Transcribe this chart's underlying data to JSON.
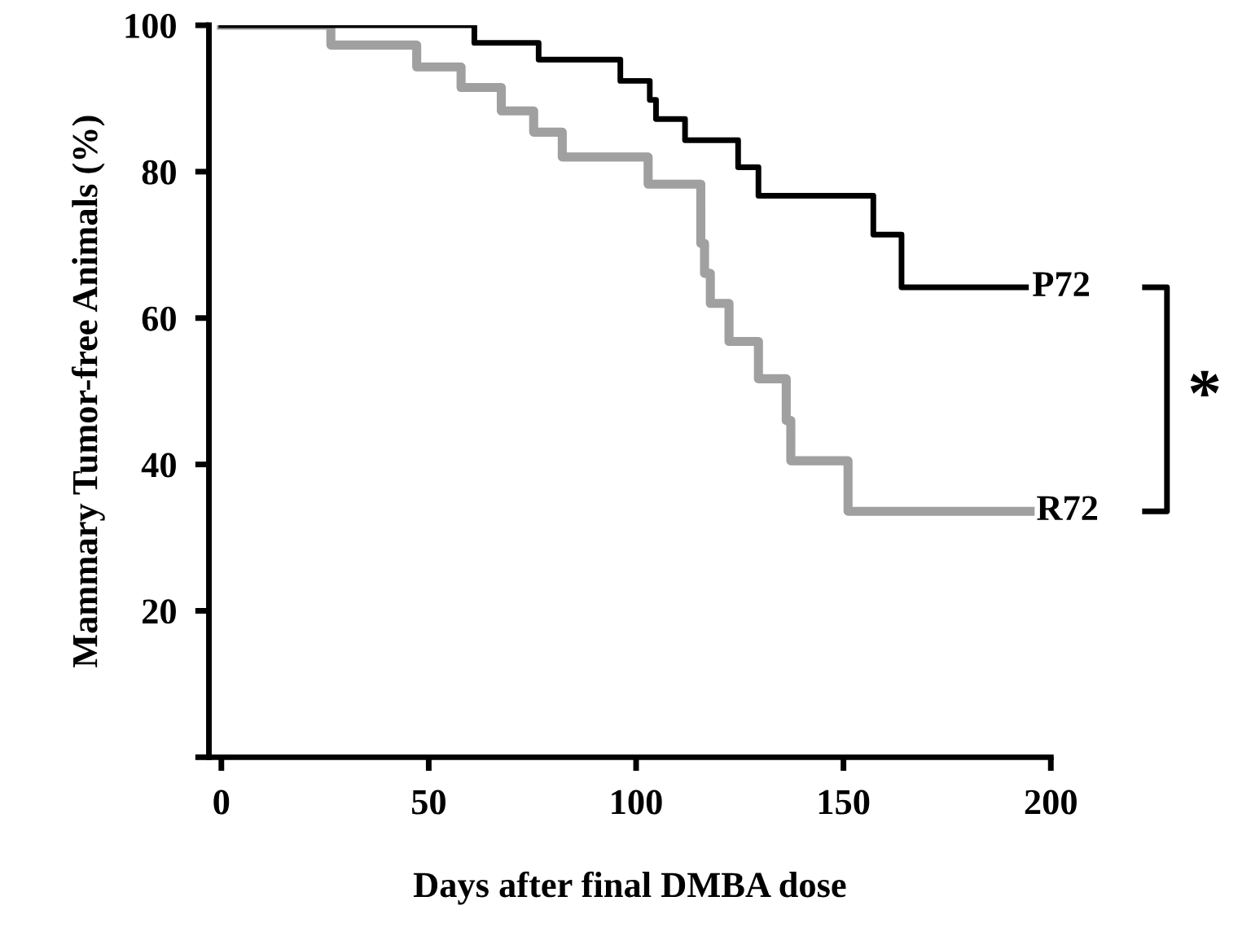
{
  "chart_data": {
    "type": "step",
    "xlabel": "Days after final DMBA dose",
    "ylabel": "Mammary Tumor-free Animals (%)",
    "xlim": [
      -3,
      200
    ],
    "ylim": [
      0,
      100
    ],
    "xticks": [
      {
        "value": 0,
        "label": "0"
      },
      50,
      100,
      150,
      200
    ],
    "yticks": [
      {
        "value": 0,
        "label": null
      },
      20,
      40,
      60,
      80,
      100
    ],
    "grid": false,
    "legend": false,
    "marker": "none",
    "line_style": "solid",
    "annotations": [
      "*"
    ],
    "series": [
      {
        "name": "P72",
        "color": "#000000",
        "x": [
          0,
          61,
          76.5,
          96.2,
          103.3,
          104.8,
          111.8,
          124.6,
          129.5,
          157.2,
          164,
          194
        ],
        "values": [
          100,
          97.6,
          95.3,
          92.4,
          89.8,
          87.2,
          84.3,
          80.6,
          76.7,
          71.4,
          64.2,
          64.2
        ]
      },
      {
        "name": "R72",
        "color": "#a0a0a0",
        "x": [
          0,
          26.4,
          47.1,
          57.8,
          67.5,
          75.3,
          82.2,
          102.9,
          115.6,
          116.5,
          117.9,
          122.4,
          129.5,
          136.2,
          137.3,
          151.1,
          195
        ],
        "values": [
          100,
          97.3,
          94.3,
          91.5,
          88.3,
          85.4,
          82.0,
          78.3,
          70.2,
          66.1,
          62.0,
          56.8,
          51.7,
          46.0,
          40.5,
          33.6,
          33.6
        ]
      }
    ]
  }
}
